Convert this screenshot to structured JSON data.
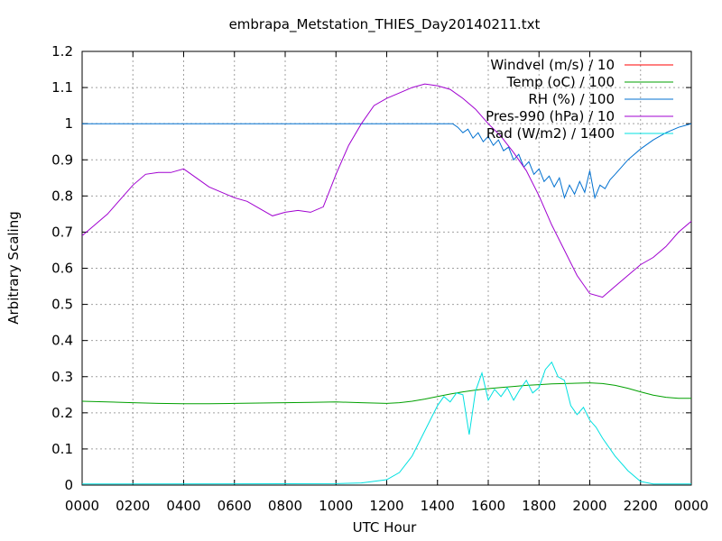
{
  "chart_data": {
    "type": "line",
    "title": "embrapa_Metstation_THIES_Day20140211.txt",
    "xlabel": "UTC Hour",
    "ylabel": "Arbitrary Scaling",
    "xlim": [
      0,
      24
    ],
    "ylim": [
      0,
      1.2
    ],
    "grid": true,
    "legend_position": "top-right",
    "x_ticks": [
      0,
      2,
      4,
      6,
      8,
      10,
      12,
      14,
      16,
      18,
      20,
      22,
      24
    ],
    "x_tick_labels": [
      "0000",
      "0200",
      "0400",
      "0600",
      "0800",
      "1000",
      "1200",
      "1400",
      "1600",
      "1800",
      "2000",
      "2200",
      "0000"
    ],
    "y_ticks": [
      0,
      0.1,
      0.2,
      0.3,
      0.4,
      0.5,
      0.6,
      0.7,
      0.8,
      0.9,
      1,
      1.1,
      1.2
    ],
    "y_tick_labels": [
      "0",
      "0.1",
      "0.2",
      "0.3",
      "0.4",
      "0.5",
      "0.6",
      "0.7",
      "0.8",
      "0.9",
      "1",
      "1.1",
      "1.2"
    ],
    "series": [
      {
        "name": "Windvel (m/s) / 10",
        "color": "#ff0000",
        "x": [],
        "y": []
      },
      {
        "name": "Temp (oC) / 100",
        "color": "#00a000",
        "x": [
          0,
          1,
          2,
          3,
          4,
          5,
          6,
          7,
          8,
          9,
          10,
          11,
          12,
          12.5,
          13,
          13.5,
          14,
          14.5,
          15,
          15.5,
          16,
          16.5,
          17,
          17.5,
          18,
          18.5,
          19,
          19.5,
          20,
          20.5,
          21,
          21.5,
          22,
          22.5,
          23,
          23.5,
          24
        ],
        "y": [
          0.232,
          0.23,
          0.228,
          0.226,
          0.225,
          0.225,
          0.226,
          0.227,
          0.228,
          0.229,
          0.23,
          0.228,
          0.226,
          0.228,
          0.232,
          0.238,
          0.245,
          0.252,
          0.258,
          0.263,
          0.267,
          0.27,
          0.273,
          0.276,
          0.278,
          0.28,
          0.281,
          0.282,
          0.283,
          0.281,
          0.276,
          0.268,
          0.258,
          0.249,
          0.243,
          0.24,
          0.24
        ]
      },
      {
        "name": "RH (%) / 100",
        "color": "#0070d0",
        "x": [
          0,
          14.6,
          14.8,
          15.0,
          15.2,
          15.4,
          15.6,
          15.8,
          16.0,
          16.2,
          16.4,
          16.6,
          16.8,
          17.0,
          17.2,
          17.4,
          17.6,
          17.8,
          18.0,
          18.2,
          18.4,
          18.6,
          18.8,
          19.0,
          19.2,
          19.4,
          19.6,
          19.8,
          20.0,
          20.2,
          20.4,
          20.6,
          20.8,
          21.0,
          21.5,
          22.0,
          22.5,
          23.0,
          23.5,
          24.0
        ],
        "y": [
          1.0,
          1.0,
          0.99,
          0.975,
          0.985,
          0.96,
          0.975,
          0.95,
          0.965,
          0.94,
          0.955,
          0.925,
          0.935,
          0.9,
          0.915,
          0.88,
          0.895,
          0.86,
          0.875,
          0.84,
          0.855,
          0.825,
          0.85,
          0.795,
          0.83,
          0.805,
          0.84,
          0.81,
          0.87,
          0.795,
          0.83,
          0.82,
          0.845,
          0.86,
          0.9,
          0.93,
          0.955,
          0.975,
          0.99,
          1.0
        ]
      },
      {
        "name": "Pres-990 (hPa) / 10",
        "color": "#a000d0",
        "x": [
          0,
          0.5,
          1,
          1.5,
          2,
          2.5,
          3,
          3.5,
          4,
          4.5,
          5,
          5.5,
          6,
          6.5,
          7,
          7.5,
          8,
          8.5,
          9,
          9.5,
          10,
          10.5,
          11,
          11.5,
          12,
          12.5,
          13,
          13.5,
          14,
          14.5,
          15,
          15.5,
          16,
          16.5,
          17,
          17.5,
          18,
          18.5,
          19,
          19.5,
          20,
          20.5,
          21,
          21.5,
          22,
          22.5,
          23,
          23.5,
          24
        ],
        "y": [
          0.69,
          0.72,
          0.75,
          0.79,
          0.83,
          0.86,
          0.865,
          0.865,
          0.875,
          0.85,
          0.825,
          0.81,
          0.795,
          0.785,
          0.765,
          0.745,
          0.755,
          0.76,
          0.755,
          0.77,
          0.86,
          0.94,
          1.0,
          1.05,
          1.07,
          1.085,
          1.1,
          1.11,
          1.105,
          1.095,
          1.07,
          1.04,
          1.0,
          0.965,
          0.92,
          0.87,
          0.8,
          0.72,
          0.65,
          0.58,
          0.53,
          0.52,
          0.55,
          0.58,
          0.61,
          0.63,
          0.66,
          0.7,
          0.73
        ]
      },
      {
        "name": "Rad (W/m2) / 1400",
        "color": "#00e0e0",
        "x": [
          0,
          10,
          11,
          12,
          12.5,
          13,
          13.5,
          14,
          14.25,
          14.5,
          14.75,
          15,
          15.25,
          15.5,
          15.75,
          16,
          16.25,
          16.5,
          16.75,
          17,
          17.25,
          17.5,
          17.75,
          18,
          18.25,
          18.5,
          18.75,
          19,
          19.25,
          19.5,
          19.75,
          20,
          20.25,
          20.5,
          21,
          21.5,
          22,
          22.5,
          23,
          24
        ],
        "y": [
          0.003,
          0.004,
          0.006,
          0.015,
          0.035,
          0.08,
          0.15,
          0.22,
          0.245,
          0.23,
          0.255,
          0.25,
          0.14,
          0.26,
          0.31,
          0.235,
          0.265,
          0.245,
          0.27,
          0.235,
          0.265,
          0.29,
          0.255,
          0.27,
          0.32,
          0.34,
          0.3,
          0.29,
          0.22,
          0.195,
          0.215,
          0.18,
          0.16,
          0.13,
          0.08,
          0.04,
          0.01,
          0.003,
          0.003,
          0.003
        ]
      }
    ]
  }
}
